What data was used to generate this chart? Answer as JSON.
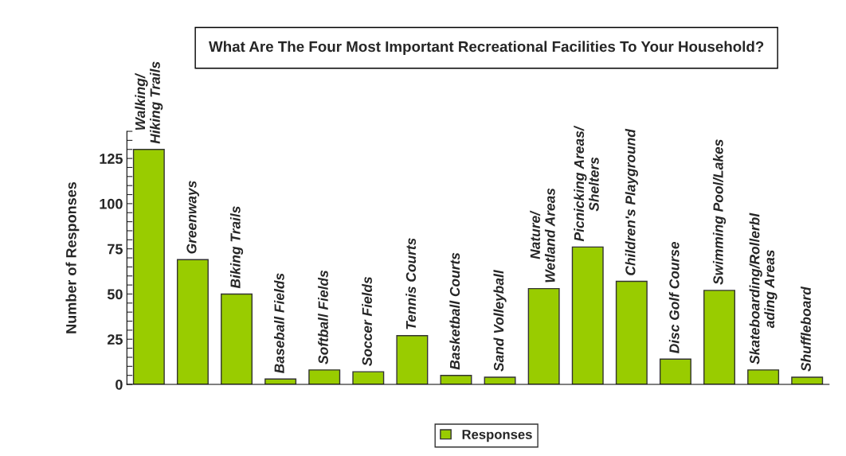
{
  "chart_data": {
    "type": "bar",
    "title": "What Are The Four Most Important Recreational Facilities To Your Household?",
    "ylabel": "Number of Responses",
    "categories": [
      "Walking/\nHiking Trails",
      "Greenways",
      "Biking Trails",
      "Baseball Fields",
      "Softball Fields",
      "Soccer Fields",
      "Tennis Courts",
      "Basketball Courts",
      "Sand Volleyball",
      "Nature/\nWetland Areas",
      "Picnicking Areas/\nShelters",
      "Children's Playground",
      "Disc Golf Course",
      "Swimming Pool/Lakes",
      "Skateboarding/Rollerbl\nading Areas",
      "Shuffleboard"
    ],
    "series": [
      {
        "name": "Responses",
        "color": "#99cc00",
        "values": [
          130,
          69,
          50,
          3,
          8,
          7,
          27,
          5,
          4,
          53,
          76,
          57,
          14,
          52,
          8,
          4
        ]
      }
    ],
    "ylim": [
      0,
      140
    ],
    "yticks": [
      0,
      {
        "value": 5,
        "label": null
      },
      {
        "value": 10,
        "label": null
      },
      {
        "value": 15,
        "label": null
      },
      {
        "value": 20,
        "label": null
      },
      25,
      {
        "value": 30,
        "label": null
      },
      {
        "value": 35,
        "label": null
      },
      {
        "value": 40,
        "label": null
      },
      {
        "value": 45,
        "label": null
      },
      50,
      {
        "value": 55,
        "label": null
      },
      {
        "value": 60,
        "label": null
      },
      {
        "value": 65,
        "label": null
      },
      {
        "value": 70,
        "label": null
      },
      75,
      {
        "value": 80,
        "label": null
      },
      {
        "value": 85,
        "label": null
      },
      {
        "value": 90,
        "label": null
      },
      {
        "value": 95,
        "label": null
      },
      100,
      {
        "value": 105,
        "label": null
      },
      {
        "value": 110,
        "label": null
      },
      {
        "value": 115,
        "label": null
      },
      {
        "value": 120,
        "label": null
      },
      125,
      {
        "value": 130,
        "label": null
      },
      {
        "value": 135,
        "label": null
      },
      {
        "value": 140,
        "label": null
      }
    ],
    "grid": false,
    "legend": "bottom"
  }
}
